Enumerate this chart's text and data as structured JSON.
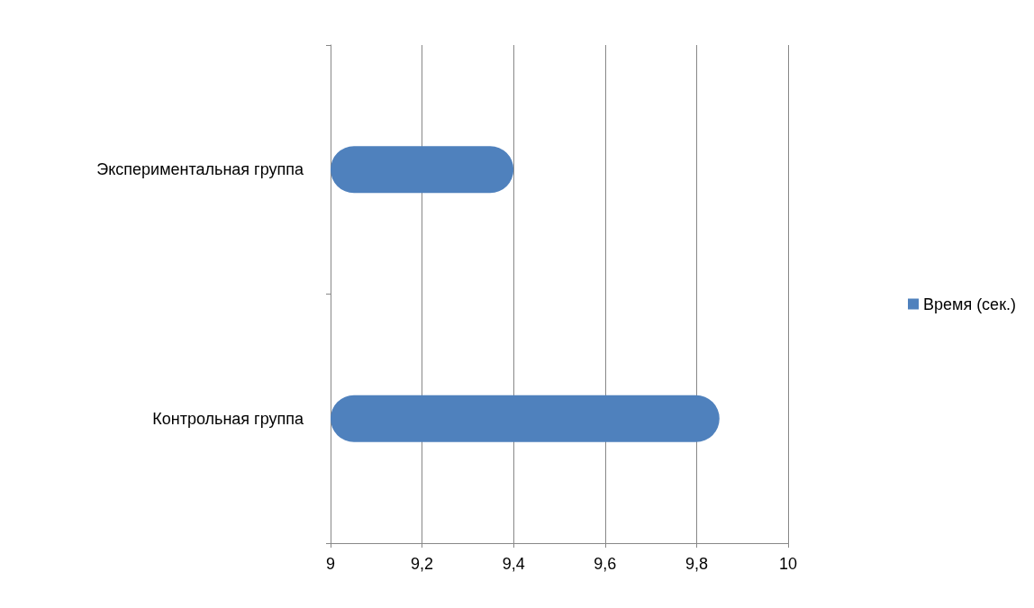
{
  "chart_data": {
    "type": "bar",
    "orientation": "horizontal",
    "categories": [
      "Экспериментальная группа",
      "Контрольная группа"
    ],
    "series": [
      {
        "name": "Время (сек.)",
        "color": "#4f81bd",
        "values": [
          9.4,
          9.85
        ]
      }
    ],
    "xlim": [
      9,
      10
    ],
    "xticks": [
      9,
      {
        "value": 9.2,
        "label": "9,2"
      },
      {
        "value": 9.4,
        "label": "9,4"
      },
      {
        "value": 9.6,
        "label": "9,6"
      },
      {
        "value": 9.8,
        "label": "9,8"
      },
      10
    ],
    "grid": "x",
    "legend": "right"
  }
}
